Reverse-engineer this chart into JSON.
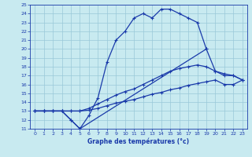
{
  "title": "Graphe des températures (°c)",
  "bg_color": "#c8eaf0",
  "grid_color": "#9ac8d8",
  "line_color": "#1a3aaa",
  "xlim": [
    -0.5,
    23.5
  ],
  "ylim": [
    11,
    25
  ],
  "xticks": [
    0,
    1,
    2,
    3,
    4,
    5,
    6,
    7,
    8,
    9,
    10,
    11,
    12,
    13,
    14,
    15,
    16,
    17,
    18,
    19,
    20,
    21,
    22,
    23
  ],
  "yticks": [
    11,
    12,
    13,
    14,
    15,
    16,
    17,
    18,
    19,
    20,
    21,
    22,
    23,
    24,
    25
  ],
  "curve1_x": [
    0,
    1,
    2,
    3,
    4,
    5,
    6,
    7,
    8,
    9,
    10,
    11,
    12,
    13,
    14,
    15,
    16,
    17,
    18,
    19
  ],
  "curve1_y": [
    13,
    13,
    13,
    13,
    12,
    11,
    12.5,
    14.5,
    18.5,
    21,
    22,
    23.5,
    24,
    23.5,
    24.5,
    24.5,
    24,
    23.5,
    23,
    20
  ],
  "curve2a_x": [
    0,
    1,
    2,
    3,
    4,
    5
  ],
  "curve2a_y": [
    13,
    13,
    13,
    13,
    12,
    11
  ],
  "curve2b_x": [
    5,
    19,
    20,
    21,
    22,
    23
  ],
  "curve2b_y": [
    11,
    20,
    17.5,
    17,
    17,
    16.5
  ],
  "curve3_x": [
    0,
    1,
    2,
    3,
    4,
    5,
    6,
    7,
    8,
    9,
    10,
    11,
    12,
    13,
    14,
    15,
    16,
    17,
    18,
    19,
    20,
    21,
    22,
    23
  ],
  "curve3_y": [
    13,
    13,
    13,
    13,
    13,
    13,
    13.3,
    13.8,
    14.3,
    14.8,
    15.2,
    15.5,
    16.0,
    16.5,
    17.0,
    17.5,
    17.8,
    18.0,
    18.2,
    18.0,
    17.5,
    17.2,
    17.0,
    16.5
  ],
  "curve4_x": [
    0,
    1,
    2,
    3,
    4,
    5,
    6,
    7,
    8,
    9,
    10,
    11,
    12,
    13,
    14,
    15,
    16,
    17,
    18,
    19,
    20,
    21,
    22,
    23
  ],
  "curve4_y": [
    13,
    13,
    13,
    13,
    13,
    13,
    13.1,
    13.3,
    13.6,
    13.9,
    14.1,
    14.3,
    14.6,
    14.9,
    15.1,
    15.4,
    15.6,
    15.9,
    16.1,
    16.3,
    16.5,
    16.0,
    16.0,
    16.5
  ]
}
